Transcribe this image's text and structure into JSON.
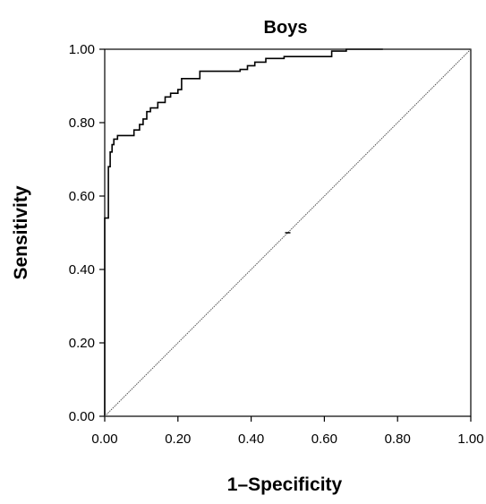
{
  "chart_data": {
    "type": "line",
    "title": "Boys",
    "xlabel": "1–Specificity",
    "ylabel": "Sensitivity",
    "xlim": [
      0,
      1
    ],
    "ylim": [
      0,
      1
    ],
    "x_ticks": [
      "0.00",
      "0.20",
      "0.40",
      "0.60",
      "0.80",
      "1.00"
    ],
    "y_ticks": [
      "0.00",
      "0.20",
      "0.40",
      "0.60",
      "0.80",
      "1.00"
    ],
    "grid": false,
    "legend": "none",
    "series": [
      {
        "style": "step",
        "color": "#000000",
        "x": [
          0.0,
          0.0,
          0.01,
          0.01,
          0.015,
          0.015,
          0.02,
          0.02,
          0.025,
          0.025,
          0.035,
          0.035,
          0.045,
          0.045,
          0.08,
          0.08,
          0.095,
          0.095,
          0.105,
          0.105,
          0.115,
          0.115,
          0.125,
          0.125,
          0.145,
          0.145,
          0.165,
          0.165,
          0.18,
          0.18,
          0.2,
          0.2,
          0.21,
          0.21,
          0.26,
          0.26,
          0.37,
          0.37,
          0.39,
          0.39,
          0.41,
          0.41,
          0.44,
          0.44,
          0.49,
          0.49,
          0.62,
          0.62,
          0.66,
          0.66,
          0.76
        ],
        "y": [
          0.0,
          0.54,
          0.54,
          0.68,
          0.68,
          0.72,
          0.72,
          0.74,
          0.74,
          0.755,
          0.755,
          0.765,
          0.765,
          0.765,
          0.765,
          0.78,
          0.78,
          0.795,
          0.795,
          0.81,
          0.81,
          0.83,
          0.83,
          0.84,
          0.84,
          0.855,
          0.855,
          0.87,
          0.87,
          0.88,
          0.88,
          0.89,
          0.89,
          0.92,
          0.92,
          0.94,
          0.94,
          0.945,
          0.945,
          0.955,
          0.955,
          0.965,
          0.965,
          0.975,
          0.975,
          0.98,
          0.98,
          0.995,
          0.995,
          1.0,
          1.0
        ]
      },
      {
        "style": "reference-diagonal",
        "color": "#555555",
        "x": [
          0,
          1
        ],
        "y": [
          0,
          1
        ]
      }
    ]
  }
}
